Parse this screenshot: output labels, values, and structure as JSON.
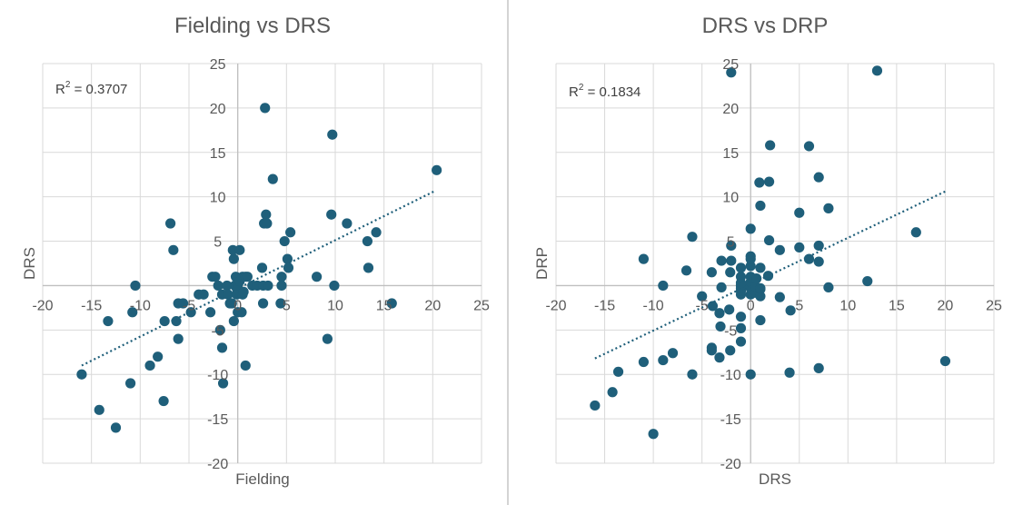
{
  "chart_data": [
    {
      "type": "scatter",
      "title": "Fielding vs DRS",
      "xlabel": "Fielding",
      "ylabel": "DRS",
      "xlim": [
        -20,
        25
      ],
      "ylim": [
        -20,
        25
      ],
      "xticks": [
        -20,
        -15,
        -10,
        -5,
        0,
        5,
        10,
        15,
        20,
        25
      ],
      "yticks": [
        -20,
        -15,
        -10,
        -5,
        0,
        5,
        10,
        15,
        20,
        25
      ],
      "grid": true,
      "marker_color": "#1f5f7a",
      "trendline": {
        "color": "#1f5f7a",
        "x": [
          -16,
          20.3
        ],
        "y": [
          -9,
          10.7
        ]
      },
      "annotation": {
        "prefix": "R",
        "sup": "2",
        "text": " = 0.3707"
      },
      "points": [
        [
          -16,
          -10
        ],
        [
          -14.2,
          -14
        ],
        [
          -13.3,
          -4
        ],
        [
          -12.5,
          -16
        ],
        [
          -11,
          -11
        ],
        [
          -10.8,
          -3
        ],
        [
          -10.5,
          0
        ],
        [
          -9,
          -9
        ],
        [
          -8.2,
          -8
        ],
        [
          -7.6,
          -13
        ],
        [
          -7.5,
          -4
        ],
        [
          -6.9,
          7
        ],
        [
          -6.6,
          4
        ],
        [
          -6.3,
          -4
        ],
        [
          -6.1,
          -6
        ],
        [
          -6.1,
          -2
        ],
        [
          -5.6,
          -2
        ],
        [
          -4.8,
          -3
        ],
        [
          -4,
          -1
        ],
        [
          -3.5,
          -1
        ],
        [
          -2.8,
          -3
        ],
        [
          -2.6,
          1
        ],
        [
          -2.3,
          1
        ],
        [
          -2,
          0
        ],
        [
          -1.8,
          -5
        ],
        [
          -1.6,
          -1
        ],
        [
          -1.6,
          -7
        ],
        [
          -1.5,
          -11
        ],
        [
          -1.1,
          0
        ],
        [
          -1,
          -1
        ],
        [
          -0.8,
          -2
        ],
        [
          -0.6,
          -2
        ],
        [
          -0.5,
          4
        ],
        [
          -0.4,
          3
        ],
        [
          -0.4,
          -4
        ],
        [
          -0.3,
          0
        ],
        [
          -0.2,
          1
        ],
        [
          -0.1,
          -1
        ],
        [
          0,
          0
        ],
        [
          0,
          -3
        ],
        [
          0.2,
          0.5
        ],
        [
          0.2,
          4
        ],
        [
          0.4,
          -3
        ],
        [
          0.5,
          1
        ],
        [
          0.5,
          -1
        ],
        [
          0.6,
          -0.7
        ],
        [
          0.8,
          1
        ],
        [
          0.8,
          -9
        ],
        [
          1,
          1
        ],
        [
          1.5,
          0
        ],
        [
          2,
          0
        ],
        [
          2.5,
          2
        ],
        [
          2.6,
          -2
        ],
        [
          2.6,
          0
        ],
        [
          2.7,
          7
        ],
        [
          2.8,
          20
        ],
        [
          2.9,
          8
        ],
        [
          3,
          7
        ],
        [
          3.1,
          0
        ],
        [
          3.6,
          12
        ],
        [
          4.4,
          -2
        ],
        [
          4.5,
          1
        ],
        [
          4.5,
          0
        ],
        [
          4.8,
          5
        ],
        [
          5.1,
          3
        ],
        [
          5.2,
          2
        ],
        [
          5.4,
          6
        ],
        [
          8.1,
          1
        ],
        [
          9.2,
          -6
        ],
        [
          9.6,
          8
        ],
        [
          9.7,
          17
        ],
        [
          9.9,
          0
        ],
        [
          11.2,
          7
        ],
        [
          13.3,
          5
        ],
        [
          13.4,
          2
        ],
        [
          14.2,
          6
        ],
        [
          15.8,
          -2
        ],
        [
          20.4,
          13
        ]
      ]
    },
    {
      "type": "scatter",
      "title": "DRS vs DRP",
      "xlabel": "DRS",
      "ylabel": "DRP",
      "xlim": [
        -20,
        25
      ],
      "ylim": [
        -20,
        25
      ],
      "xticks": [
        -20,
        -15,
        -10,
        -5,
        0,
        5,
        10,
        15,
        20,
        25
      ],
      "yticks": [
        -20,
        -15,
        -10,
        -5,
        0,
        5,
        10,
        15,
        20,
        25
      ],
      "grid": true,
      "marker_color": "#1f5f7a",
      "trendline": {
        "color": "#1f5f7a",
        "x": [
          -16,
          20
        ],
        "y": [
          -8.2,
          10.6
        ]
      },
      "annotation": {
        "prefix": "R",
        "sup": "2",
        "text": " = 0.1834"
      },
      "points": [
        [
          -16,
          -13.5
        ],
        [
          -14.2,
          -12
        ],
        [
          -13.6,
          -9.7
        ],
        [
          -11,
          -8.6
        ],
        [
          -11,
          3
        ],
        [
          -10,
          -16.7
        ],
        [
          -9,
          -8.4
        ],
        [
          -9,
          0
        ],
        [
          -8,
          -7.6
        ],
        [
          -6.6,
          1.7
        ],
        [
          -6,
          -10
        ],
        [
          -6,
          5.5
        ],
        [
          -5,
          -1.2
        ],
        [
          -4,
          -7
        ],
        [
          -4,
          -7.3
        ],
        [
          -4,
          1.5
        ],
        [
          -3.9,
          -2.3
        ],
        [
          -3.2,
          -8.1
        ],
        [
          -3.2,
          -3.1
        ],
        [
          -3.1,
          -4.6
        ],
        [
          -3,
          -0.2
        ],
        [
          -3,
          2.8
        ],
        [
          -2.2,
          -2.7
        ],
        [
          -2.1,
          -7.3
        ],
        [
          -2.1,
          1.5
        ],
        [
          -2,
          2.8
        ],
        [
          -2,
          4.5
        ],
        [
          -2,
          24
        ],
        [
          -1,
          -6.3
        ],
        [
          -1,
          -4.8
        ],
        [
          -1,
          -3.5
        ],
        [
          -1,
          -1
        ],
        [
          -1,
          -0.6
        ],
        [
          -1,
          -0.3
        ],
        [
          -1,
          0
        ],
        [
          -1,
          0.3
        ],
        [
          -1,
          1
        ],
        [
          -1,
          2
        ],
        [
          0,
          -10
        ],
        [
          0,
          -1
        ],
        [
          0,
          -0.3
        ],
        [
          0,
          0
        ],
        [
          0,
          0.4
        ],
        [
          0,
          1
        ],
        [
          0,
          2.2
        ],
        [
          0,
          3
        ],
        [
          0,
          3.3
        ],
        [
          0,
          6.4
        ],
        [
          0.5,
          -0.8
        ],
        [
          0.5,
          -0.1
        ],
        [
          0.6,
          0.8
        ],
        [
          0.9,
          11.6
        ],
        [
          1,
          -3.9
        ],
        [
          1,
          -1.2
        ],
        [
          1,
          -0.4
        ],
        [
          1,
          2
        ],
        [
          1,
          9
        ],
        [
          1,
          -0.3
        ],
        [
          1.8,
          1.1
        ],
        [
          1.9,
          5.1
        ],
        [
          1.9,
          11.7
        ],
        [
          2,
          15.8
        ],
        [
          3,
          -1.3
        ],
        [
          3,
          4
        ],
        [
          4,
          -9.8
        ],
        [
          4.1,
          -2.8
        ],
        [
          5,
          4.3
        ],
        [
          5,
          8.2
        ],
        [
          6,
          3
        ],
        [
          6,
          15.7
        ],
        [
          7,
          -9.3
        ],
        [
          7,
          2.7
        ],
        [
          7,
          4.5
        ],
        [
          7,
          12.2
        ],
        [
          8,
          -0.2
        ],
        [
          8,
          8.7
        ],
        [
          12,
          0.5
        ],
        [
          13,
          24.2
        ],
        [
          17,
          6
        ],
        [
          20,
          -8.5
        ]
      ]
    }
  ]
}
